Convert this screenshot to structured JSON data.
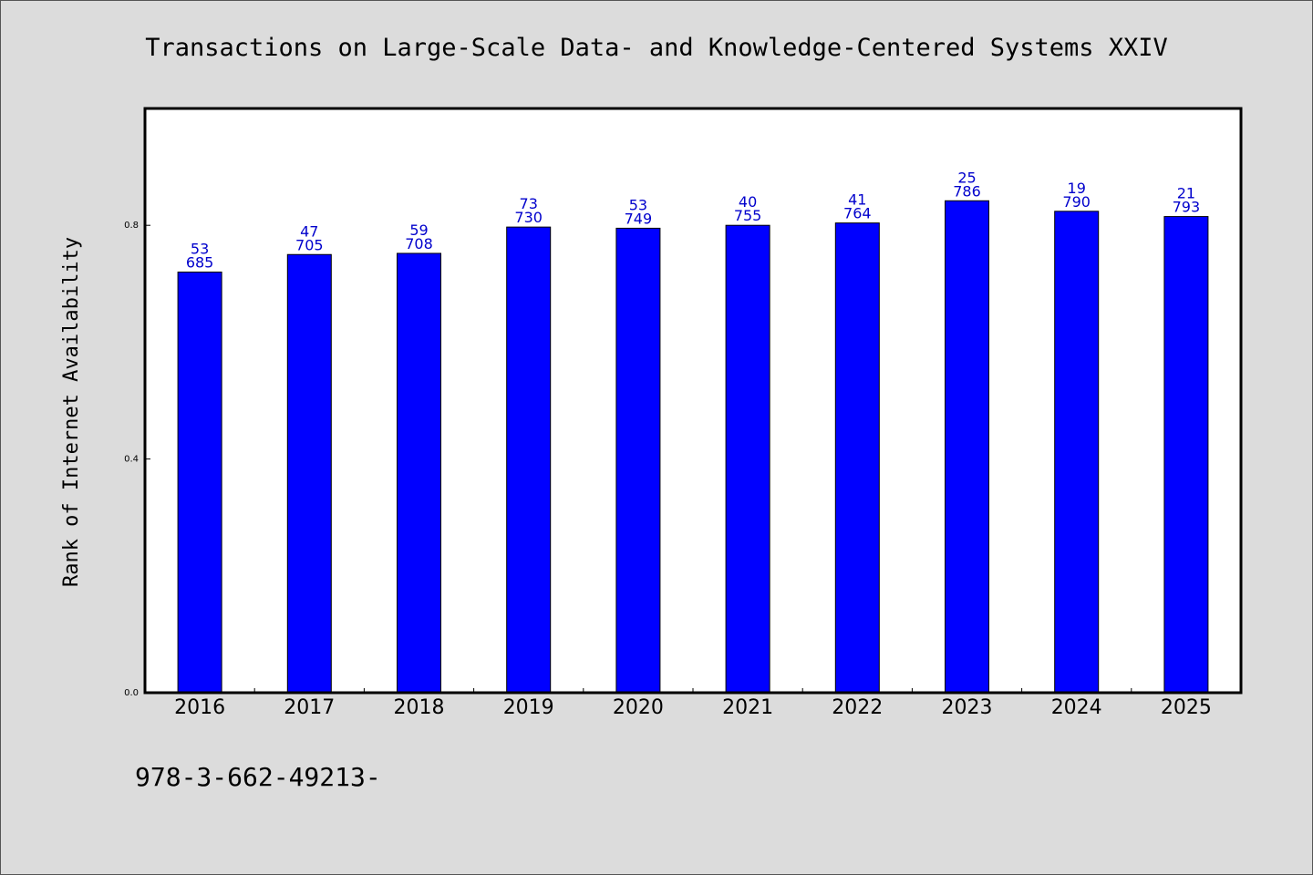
{
  "chart_data": {
    "type": "bar",
    "title": "Transactions on Large-Scale Data- and Knowledge-Centered Systems XXIV",
    "xlabel": "",
    "ylabel": "Rank of Internet Availability",
    "categories": [
      "2016",
      "2017",
      "2018",
      "2019",
      "2020",
      "2021",
      "2022",
      "2023",
      "2024",
      "2025"
    ],
    "values": [
      0.72,
      0.75,
      0.752,
      0.797,
      0.795,
      0.8,
      0.804,
      0.842,
      0.824,
      0.815
    ],
    "labels_top": [
      "53",
      "47",
      "59",
      "73",
      "53",
      "40",
      "41",
      "25",
      "19",
      "21"
    ],
    "labels_bottom": [
      "685",
      "705",
      "708",
      "730",
      "749",
      "755",
      "764",
      "786",
      "790",
      "793"
    ],
    "yticks": [
      "0.0",
      "0.4",
      "0.8"
    ],
    "ytick_values": [
      0.0,
      0.4,
      0.8
    ],
    "ylim": [
      0,
      1.0
    ],
    "grid": false,
    "bar_color": "#0000ff",
    "label_color": "#0000cc"
  },
  "footer_text": "978-3-662-49213-"
}
